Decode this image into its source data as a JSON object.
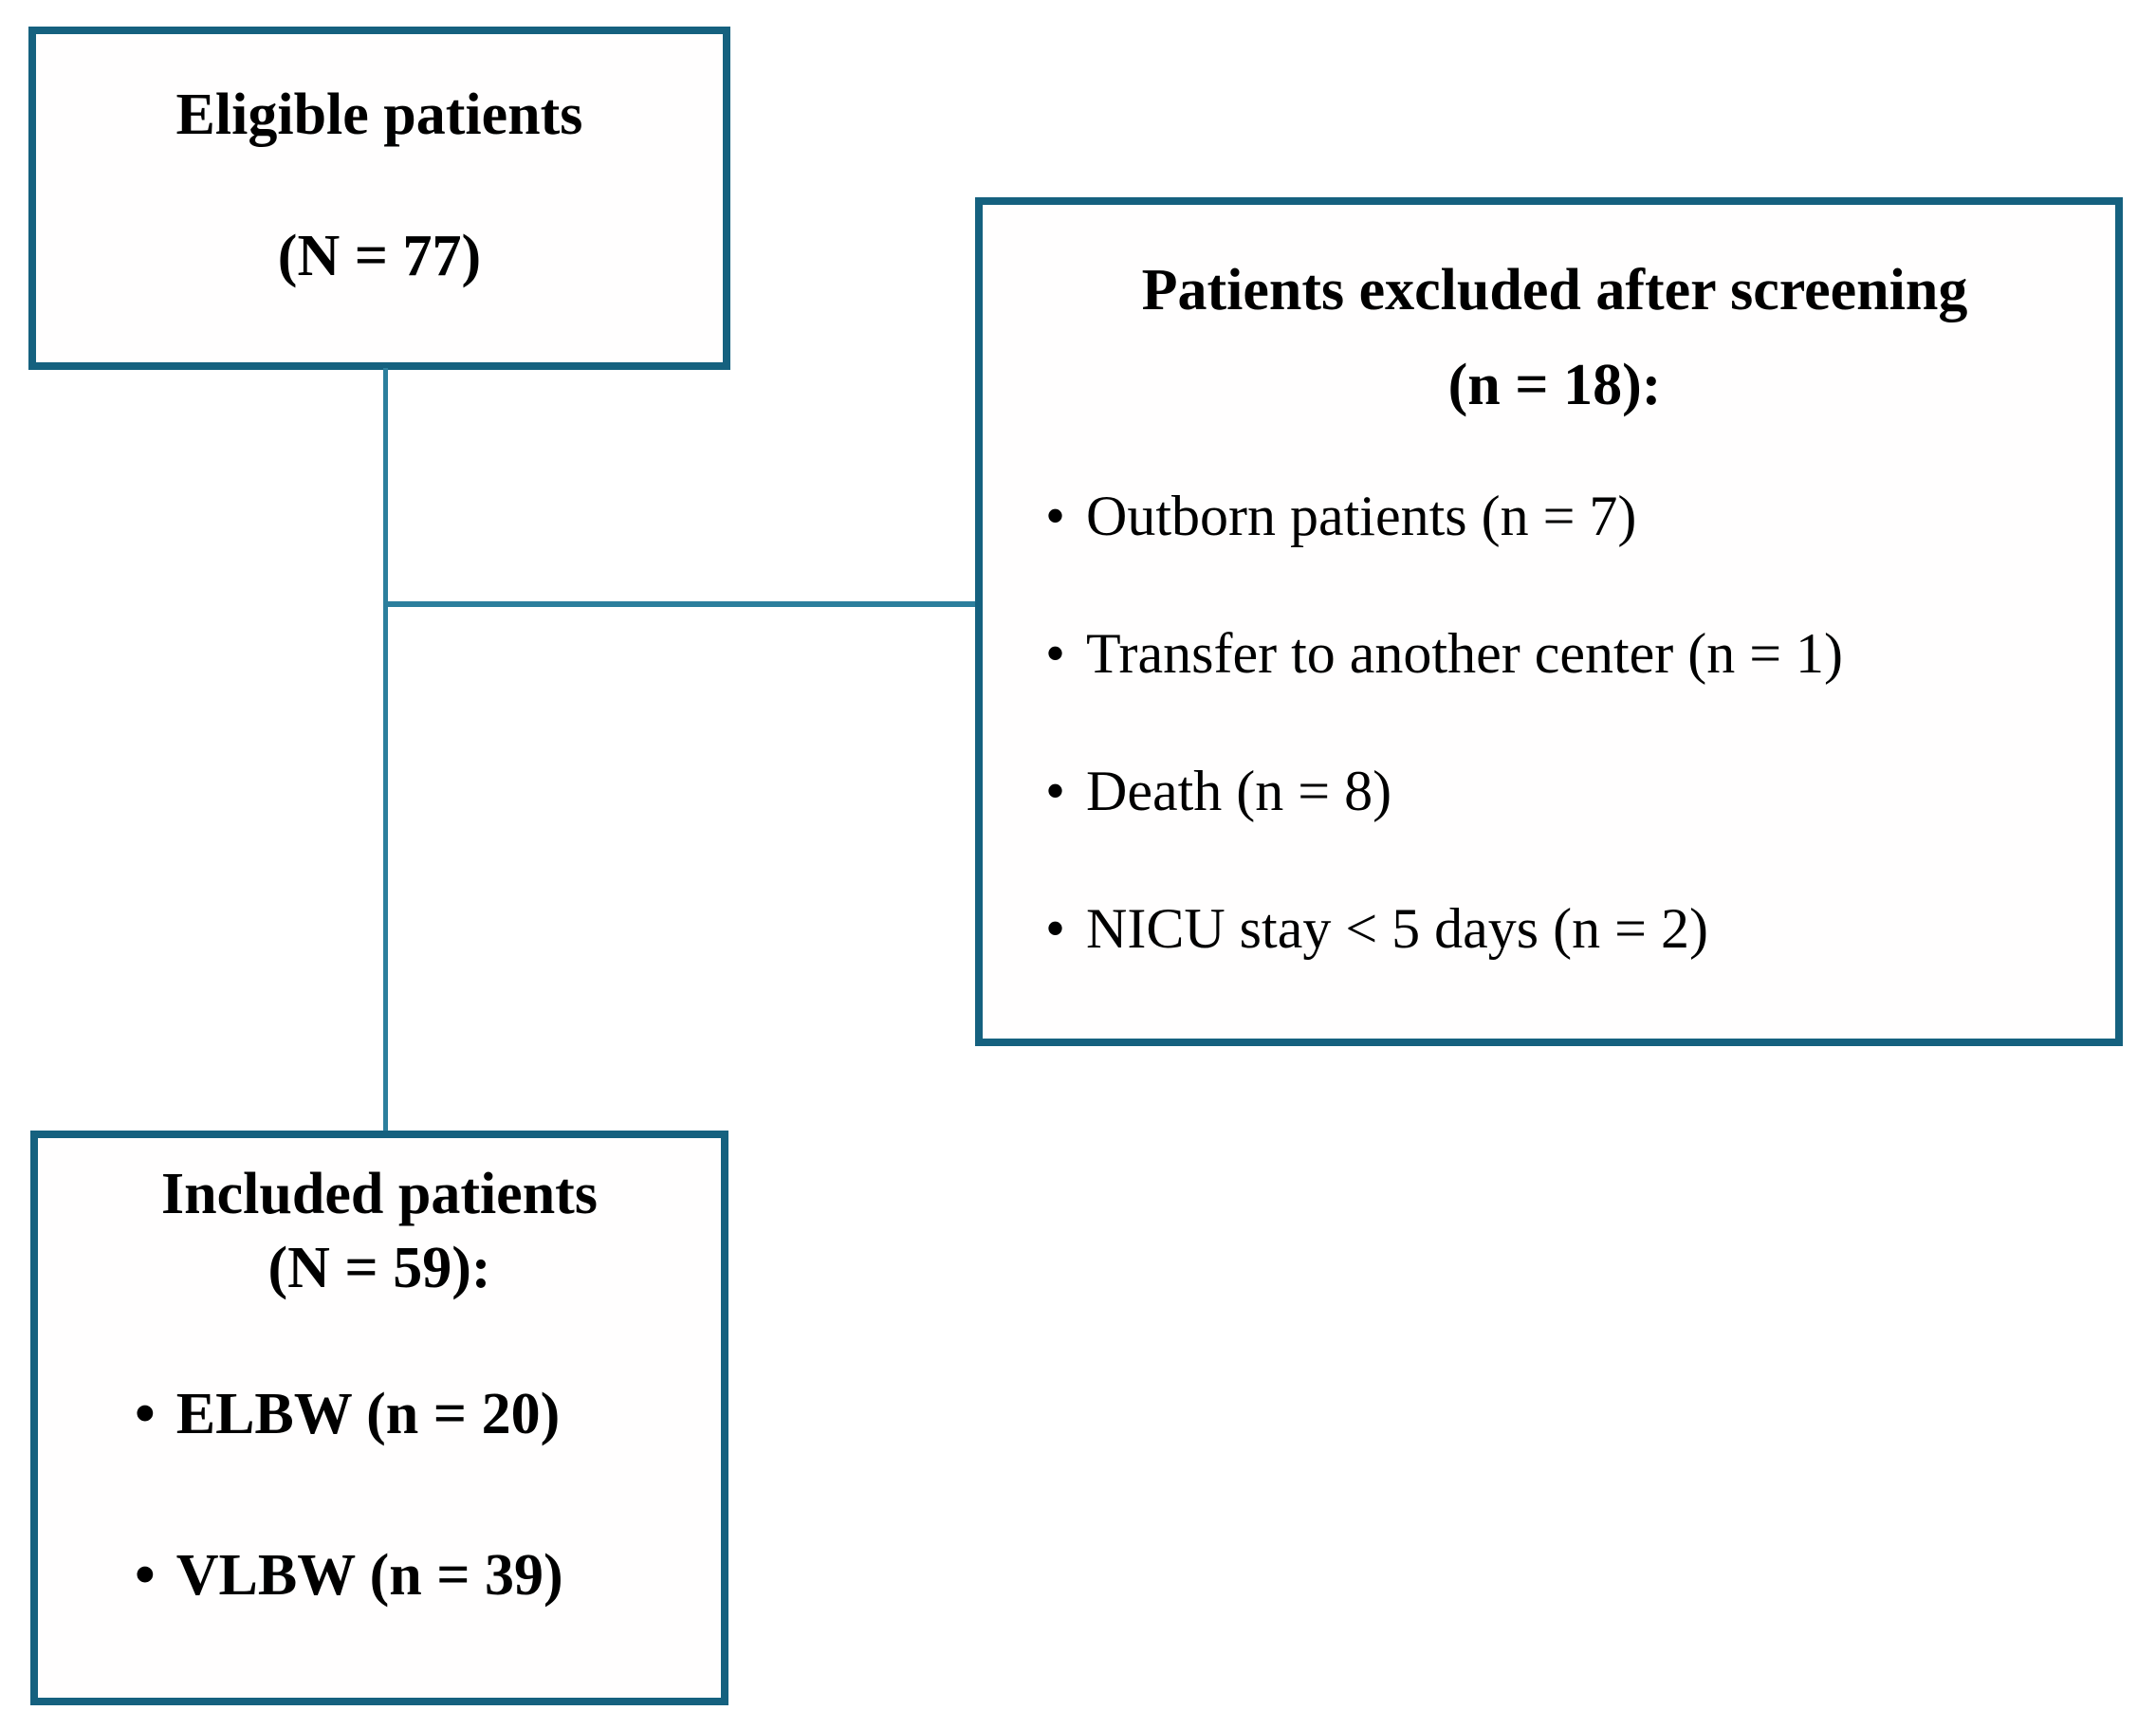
{
  "diagram": {
    "boxes": {
      "eligible": {
        "title": "Eligible patients",
        "count": "(N = 77)"
      },
      "excluded": {
        "title": "Patients excluded after screening",
        "count": "(n = 18):",
        "bullet": "•",
        "items": [
          {
            "label": "Outborn patients (n = 7)"
          },
          {
            "label": "Transfer to another center (n = 1)"
          },
          {
            "label": "Death (n = 8)"
          },
          {
            "label": "NICU stay < 5 days (n = 2)"
          }
        ]
      },
      "included": {
        "title": "Included patients",
        "count": "(N = 59):",
        "bullet": "•",
        "items": [
          {
            "label": "ELBW (n = 20)"
          },
          {
            "label": "VLBW (n = 39)"
          }
        ]
      }
    },
    "colors": {
      "box_border": "#15617f",
      "connector_line": "#2c7f9d",
      "text": "#000000",
      "background": "#ffffff"
    }
  }
}
